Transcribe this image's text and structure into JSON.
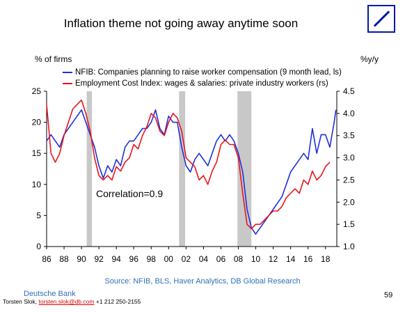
{
  "header": {
    "title": "Inflation theme not going away anytime soon"
  },
  "footer": {
    "source": "Source: NFIB, BLS, Haver Analytics, DB Global Research",
    "bank": "Deutsche Bank",
    "contact_name": "Torsten Slok,",
    "contact_email": "torsten.slok@db.com",
    "contact_phone": "+1 212 250-2155",
    "page_number": "59"
  },
  "chart_data": {
    "type": "line",
    "ylabel_left": "% of firms",
    "ylabel_right": "%y/y",
    "ylim_left": [
      0,
      25
    ],
    "ylim_right": [
      1.0,
      4.5
    ],
    "yticks_left": [
      "0",
      "5",
      "10",
      "15",
      "20",
      "25"
    ],
    "yticks_right": [
      "1.0",
      "1.5",
      "2.0",
      "2.5",
      "3.0",
      "3.5",
      "4.0",
      "4.5"
    ],
    "xlim": [
      1986,
      2019.3
    ],
    "xticks": [
      "86",
      "88",
      "90",
      "92",
      "94",
      "96",
      "98",
      "00",
      "02",
      "04",
      "06",
      "08",
      "10",
      "12",
      "14",
      "16",
      "18"
    ],
    "annotation": "Correlation=0.9",
    "colors": {
      "nfib": "#1f2fdb",
      "eci": "#e8141b",
      "recession": "#c8c8c8"
    },
    "recessions": [
      [
        1990.6,
        1991.2
      ],
      [
        2001.2,
        2001.9
      ],
      [
        2007.9,
        2009.5
      ]
    ],
    "series": [
      {
        "name": "NFIB: Companies planning to raise worker compensation (9 month lead, ls)",
        "axis": "left",
        "x": [
          1986.0,
          1986.5,
          1987.0,
          1987.5,
          1988.0,
          1988.5,
          1989.0,
          1989.5,
          1990.0,
          1990.5,
          1991.0,
          1991.5,
          1992.0,
          1992.5,
          1993.0,
          1993.5,
          1994.0,
          1994.5,
          1995.0,
          1995.5,
          1996.0,
          1996.5,
          1997.0,
          1997.5,
          1998.0,
          1998.5,
          1999.0,
          1999.5,
          2000.0,
          2000.5,
          2001.0,
          2001.5,
          2002.0,
          2002.5,
          2003.0,
          2003.5,
          2004.0,
          2004.5,
          2005.0,
          2005.5,
          2006.0,
          2006.5,
          2007.0,
          2007.5,
          2008.0,
          2008.5,
          2009.0,
          2009.5,
          2010.0,
          2010.5,
          2011.0,
          2011.5,
          2012.0,
          2012.5,
          2013.0,
          2013.5,
          2014.0,
          2014.5,
          2015.0,
          2015.5,
          2016.0,
          2016.5,
          2017.0,
          2017.5,
          2018.0,
          2018.5,
          2019.0,
          2019.2
        ],
        "values": [
          17,
          18,
          17,
          16,
          18,
          19,
          20,
          21,
          22,
          20,
          18,
          16,
          13,
          11,
          13,
          12,
          14,
          13,
          16,
          17,
          17,
          18,
          19,
          19,
          20,
          22,
          19,
          18,
          21,
          20,
          20,
          16,
          13,
          12,
          14,
          15,
          14,
          13,
          15,
          17,
          18,
          17,
          18,
          17,
          15,
          12,
          6,
          3,
          2,
          3,
          4,
          5,
          6,
          7,
          8,
          10,
          12,
          13,
          14,
          15,
          14,
          19,
          15,
          18,
          18,
          16,
          20,
          22
        ]
      },
      {
        "name": "Employment Cost Index: wages & salaries: private industry workers (rs)",
        "axis": "right",
        "x": [
          1986.0,
          1986.5,
          1987.0,
          1987.5,
          1988.0,
          1988.5,
          1989.0,
          1989.5,
          1990.0,
          1990.5,
          1991.0,
          1991.5,
          1992.0,
          1992.5,
          1993.0,
          1993.5,
          1994.0,
          1994.5,
          1995.0,
          1995.5,
          1996.0,
          1996.5,
          1997.0,
          1997.5,
          1998.0,
          1998.5,
          1999.0,
          1999.5,
          2000.0,
          2000.5,
          2001.0,
          2001.5,
          2002.0,
          2002.5,
          2003.0,
          2003.5,
          2004.0,
          2004.5,
          2005.0,
          2005.5,
          2006.0,
          2006.5,
          2007.0,
          2007.5,
          2008.0,
          2008.5,
          2009.0,
          2009.5,
          2010.0,
          2010.5,
          2011.0,
          2011.5,
          2012.0,
          2012.5,
          2013.0,
          2013.5,
          2014.0,
          2014.5,
          2015.0,
          2015.5,
          2016.0,
          2016.5,
          2017.0,
          2017.5,
          2018.0,
          2018.5
        ],
        "values": [
          4.2,
          3.1,
          2.9,
          3.1,
          3.5,
          3.8,
          4.1,
          4.2,
          4.3,
          4.0,
          3.6,
          3.0,
          2.6,
          2.5,
          2.6,
          2.5,
          2.8,
          2.7,
          2.9,
          3.0,
          3.3,
          3.2,
          3.5,
          3.7,
          4.0,
          3.9,
          3.6,
          3.5,
          3.8,
          4.0,
          3.9,
          3.6,
          3.0,
          2.9,
          2.8,
          2.5,
          2.6,
          2.4,
          2.7,
          2.9,
          3.3,
          3.4,
          3.3,
          3.3,
          3.0,
          2.2,
          1.5,
          1.4,
          1.5,
          1.5,
          1.6,
          1.7,
          1.8,
          1.8,
          1.9,
          2.1,
          2.2,
          2.3,
          2.2,
          2.5,
          2.4,
          2.7,
          2.5,
          2.6,
          2.8,
          2.9
        ]
      }
    ]
  }
}
